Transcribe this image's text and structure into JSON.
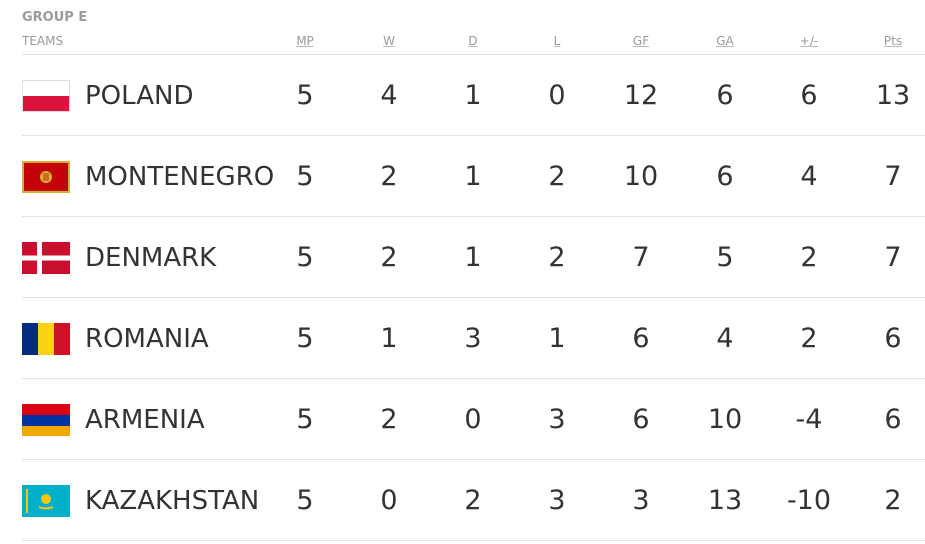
{
  "group": "GROUP E",
  "table": {
    "header": [
      "TEAMS",
      "MP",
      "W",
      "D",
      "L",
      "GF",
      "GA",
      "+/-",
      "Pts"
    ],
    "rows": [
      [
        "POLAND",
        5,
        4,
        1,
        0,
        12,
        6,
        6,
        13
      ],
      [
        "MONTENEGRO",
        5,
        2,
        1,
        2,
        10,
        6,
        4,
        7
      ],
      [
        "DENMARK",
        5,
        2,
        1,
        2,
        7,
        5,
        2,
        7
      ],
      [
        "ROMANIA",
        5,
        1,
        3,
        1,
        6,
        4,
        2,
        6
      ],
      [
        "ARMENIA",
        5,
        2,
        0,
        3,
        6,
        10,
        -4,
        6
      ],
      [
        "KAZAKHSTAN",
        5,
        0,
        2,
        3,
        3,
        13,
        -10,
        2
      ]
    ]
  }
}
